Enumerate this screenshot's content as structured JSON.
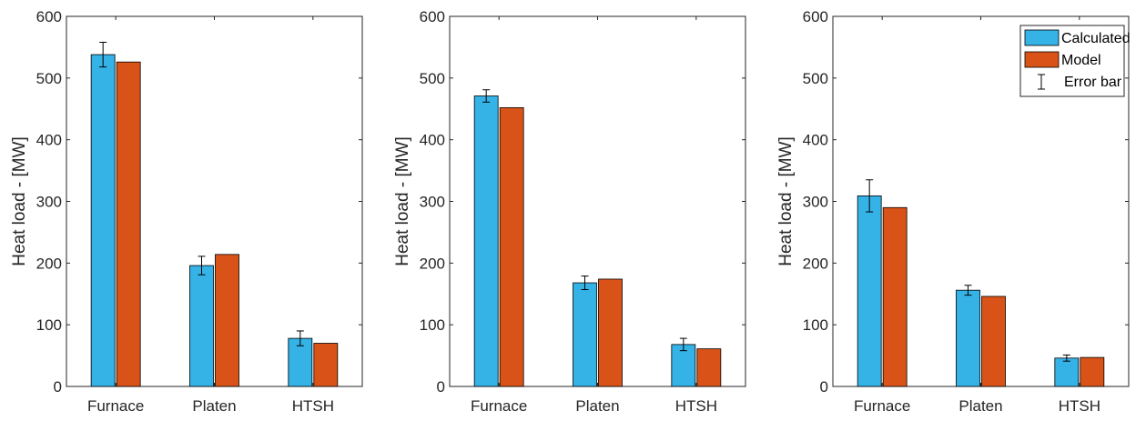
{
  "chart_data": [
    {
      "type": "bar",
      "categories": [
        "Furnace",
        "Platen",
        "HTSH"
      ],
      "ylabel": "Heat load - [MW]",
      "ylim": [
        0,
        600
      ],
      "yticks": [
        0,
        100,
        200,
        300,
        400,
        500,
        600
      ],
      "series": [
        {
          "name": "Calculated",
          "color": "#35B2E6",
          "values": [
            538,
            196,
            78
          ],
          "error": [
            20,
            15,
            12
          ]
        },
        {
          "name": "Model",
          "color": "#D95319",
          "values": [
            526,
            214,
            70
          ]
        }
      ],
      "legend": null
    },
    {
      "type": "bar",
      "categories": [
        "Furnace",
        "Platen",
        "HTSH"
      ],
      "ylabel": "Heat load - [MW]",
      "ylim": [
        0,
        600
      ],
      "yticks": [
        0,
        100,
        200,
        300,
        400,
        500,
        600
      ],
      "series": [
        {
          "name": "Calculated",
          "color": "#35B2E6",
          "values": [
            471,
            168,
            68
          ],
          "error": [
            10,
            11,
            10
          ]
        },
        {
          "name": "Model",
          "color": "#D95319",
          "values": [
            452,
            174,
            61
          ]
        }
      ],
      "legend": null
    },
    {
      "type": "bar",
      "categories": [
        "Furnace",
        "Platen",
        "HTSH"
      ],
      "ylabel": "Heat load - [MW]",
      "ylim": [
        0,
        600
      ],
      "yticks": [
        0,
        100,
        200,
        300,
        400,
        500,
        600
      ],
      "series": [
        {
          "name": "Calculated",
          "color": "#35B2E6",
          "values": [
            309,
            156,
            46
          ],
          "error": [
            26,
            8,
            5
          ]
        },
        {
          "name": "Model",
          "color": "#D95319",
          "values": [
            290,
            146,
            47
          ]
        }
      ],
      "legend": {
        "position": "top-right",
        "entries": [
          {
            "label": "Calculated",
            "kind": "bar",
            "color": "#35B2E6"
          },
          {
            "label": "Model",
            "kind": "bar",
            "color": "#D95319"
          },
          {
            "label": "Error bar",
            "kind": "errorbar",
            "color": "#000000"
          }
        ]
      }
    }
  ]
}
